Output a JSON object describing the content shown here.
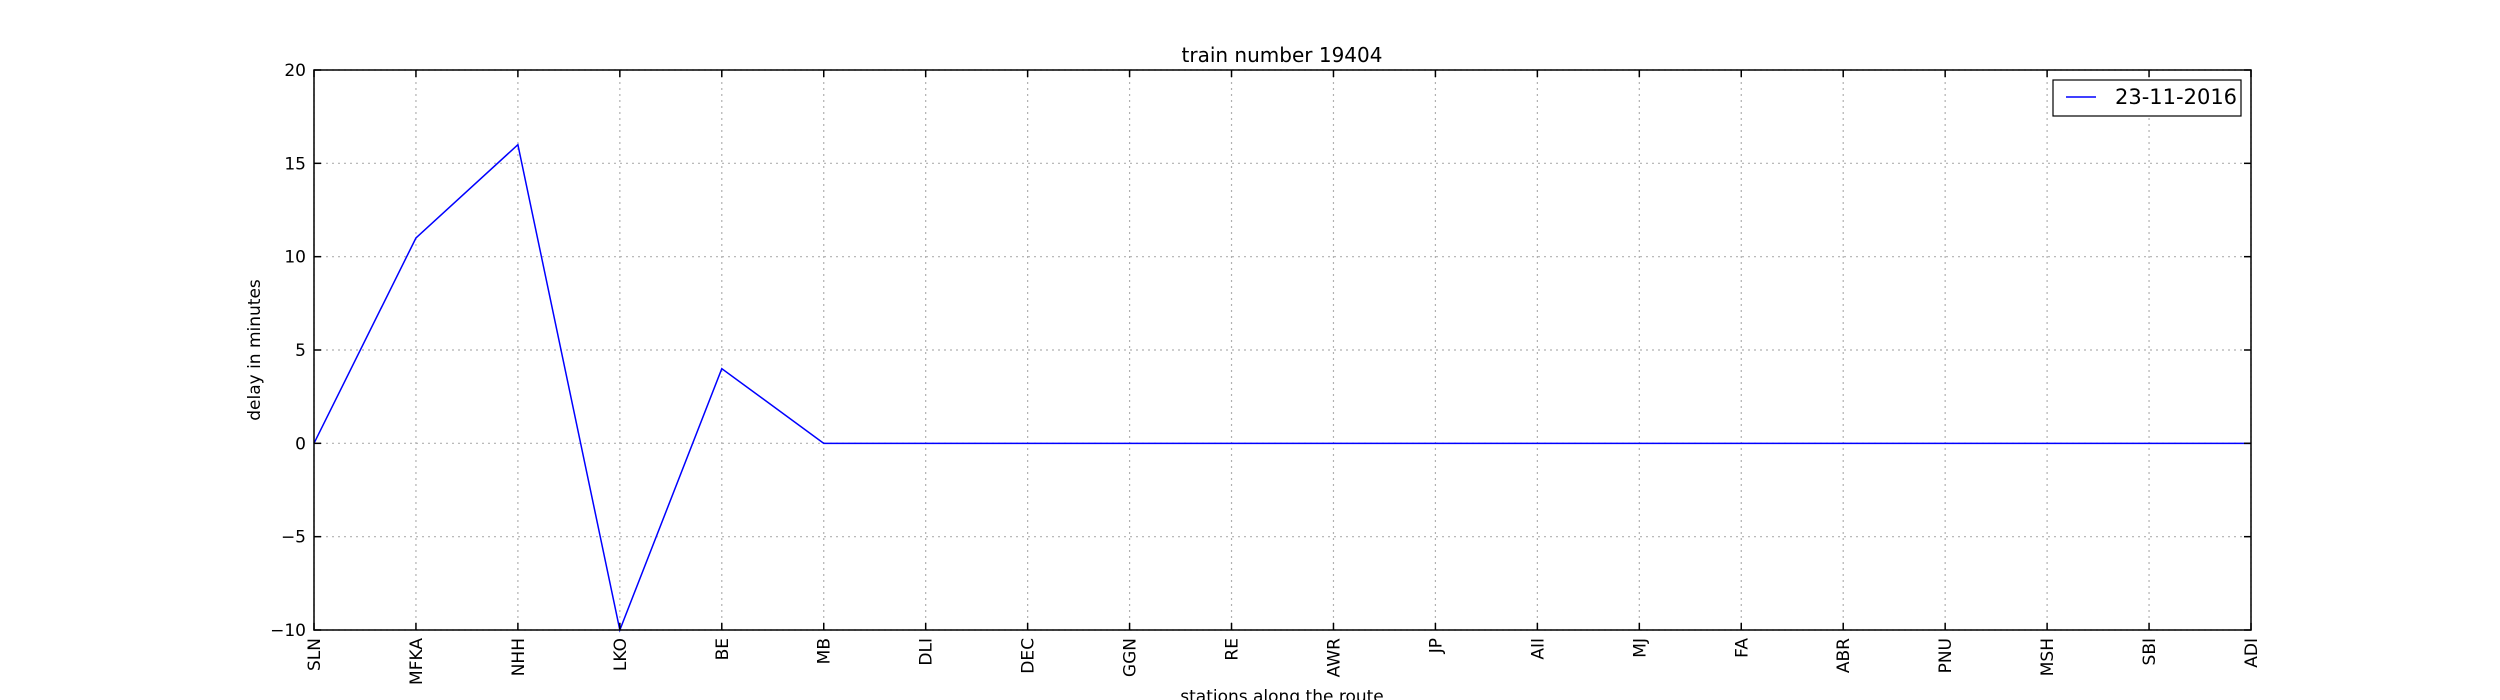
{
  "chart_data": {
    "type": "line",
    "title": "train number 19404",
    "xlabel": "stations along the route",
    "ylabel": "delay in minutes",
    "categories": [
      "SLN",
      "MFKA",
      "NHH",
      "LKO",
      "BE",
      "MB",
      "DLI",
      "DEC",
      "GGN",
      "RE",
      "AWR",
      "JP",
      "AII",
      "MJ",
      "FA",
      "ABR",
      "PNU",
      "MSH",
      "SBI",
      "ADI"
    ],
    "series": [
      {
        "name": "23-11-2016",
        "color": "#0000ff",
        "values": [
          0,
          11,
          16,
          -10,
          4,
          0,
          0,
          0,
          0,
          0,
          0,
          0,
          0,
          0,
          0,
          0,
          0,
          0,
          0,
          0
        ]
      }
    ],
    "ylim": [
      -10,
      20
    ],
    "yticks": [
      -10,
      -5,
      0,
      5,
      10,
      15,
      20
    ],
    "ytick_labels": [
      "−10",
      "−5",
      "0",
      "5",
      "10",
      "15",
      "20"
    ],
    "grid": true,
    "legend_position": "top-right"
  }
}
